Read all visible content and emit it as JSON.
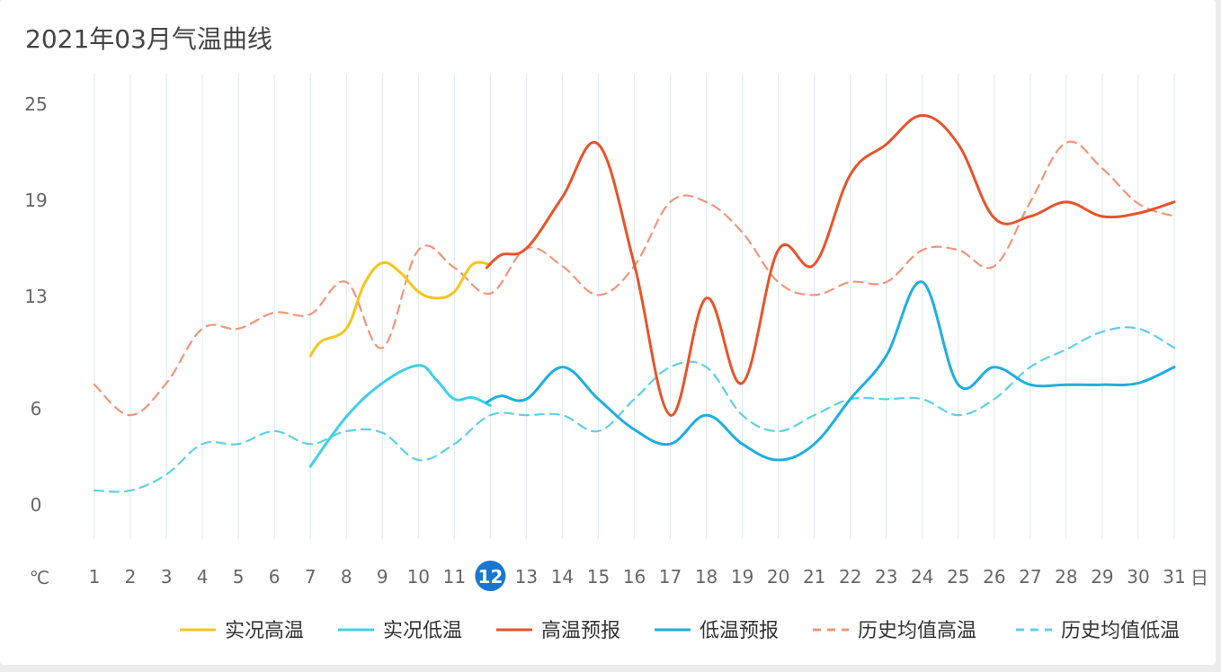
{
  "title": "2021年03月气温曲线",
  "chart_data": {
    "type": "line",
    "title": "2021年03月气温曲线",
    "ylabel": "℃",
    "xlabel": "日",
    "x_categories": [
      "1",
      "2",
      "3",
      "4",
      "5",
      "6",
      "7",
      "8",
      "9",
      "10",
      "11",
      "12",
      "13",
      "14",
      "15",
      "16",
      "17",
      "18",
      "19",
      "20",
      "21",
      "22",
      "23",
      "24",
      "25",
      "26",
      "27",
      "28",
      "29",
      "30",
      "31"
    ],
    "highlighted_day": "12",
    "ylim": [
      0,
      25
    ],
    "y_ticks": [
      0,
      6,
      13,
      19,
      25
    ],
    "grid": "vertical",
    "legend_position": "bottom-right",
    "series": [
      {
        "name": "实况高温",
        "color": "#f5c518",
        "style": "solid",
        "points": [
          [
            7,
            9.3
          ],
          [
            7.3,
            10.2
          ],
          [
            8,
            11
          ],
          [
            8.5,
            13.8
          ],
          [
            9,
            15.1
          ],
          [
            9.5,
            14.5
          ],
          [
            10,
            13.3
          ],
          [
            10.5,
            12.9
          ],
          [
            11,
            13.3
          ],
          [
            11.5,
            15
          ],
          [
            12,
            15
          ]
        ]
      },
      {
        "name": "实况低温",
        "color": "#3fd0e6",
        "style": "solid",
        "points": [
          [
            7,
            2.4
          ],
          [
            8,
            5.5
          ],
          [
            9,
            7.6
          ],
          [
            10,
            8.7
          ],
          [
            10.5,
            7.8
          ],
          [
            11,
            6.6
          ],
          [
            11.5,
            6.7
          ],
          [
            12,
            6.2
          ]
        ]
      },
      {
        "name": "高温预报",
        "color": "#e8532a",
        "style": "solid",
        "points": [
          [
            11.9,
            14.8
          ],
          [
            12.3,
            15.6
          ],
          [
            13,
            16
          ],
          [
            14,
            19.2
          ],
          [
            15,
            22.5
          ],
          [
            16,
            15
          ],
          [
            17,
            5.6
          ],
          [
            18,
            12.9
          ],
          [
            19,
            7.6
          ],
          [
            20,
            15.9
          ],
          [
            21,
            15
          ],
          [
            22,
            20.6
          ],
          [
            23,
            22.5
          ],
          [
            24,
            24.3
          ],
          [
            25,
            22.5
          ],
          [
            26,
            17.9
          ],
          [
            27,
            18
          ],
          [
            28,
            18.9
          ],
          [
            29,
            18
          ],
          [
            30,
            18.2
          ],
          [
            31,
            18.9
          ]
        ]
      },
      {
        "name": "低温预报",
        "color": "#1eaee0",
        "style": "solid",
        "points": [
          [
            11.9,
            6.4
          ],
          [
            12.3,
            6.8
          ],
          [
            13,
            6.6
          ],
          [
            14,
            8.6
          ],
          [
            15,
            6.6
          ],
          [
            16,
            4.7
          ],
          [
            17,
            3.8
          ],
          [
            18,
            5.6
          ],
          [
            19,
            3.8
          ],
          [
            20,
            2.8
          ],
          [
            21,
            3.8
          ],
          [
            22,
            6.6
          ],
          [
            23,
            9.3
          ],
          [
            24,
            13.9
          ],
          [
            25,
            7.5
          ],
          [
            26,
            8.6
          ],
          [
            27,
            7.5
          ],
          [
            28,
            7.5
          ],
          [
            29,
            7.5
          ],
          [
            30,
            7.6
          ],
          [
            31,
            8.6
          ]
        ]
      },
      {
        "name": "历史均值高温",
        "color": "#f0957a",
        "style": "dashed",
        "points": [
          [
            1,
            7.5
          ],
          [
            2,
            5.6
          ],
          [
            3,
            7.6
          ],
          [
            4,
            11
          ],
          [
            5,
            11
          ],
          [
            6,
            12
          ],
          [
            7,
            11.9
          ],
          [
            8,
            13.9
          ],
          [
            9,
            9.8
          ],
          [
            10,
            15.9
          ],
          [
            11,
            14.8
          ],
          [
            12,
            13.2
          ],
          [
            13,
            16
          ],
          [
            14,
            14.9
          ],
          [
            15,
            13.1
          ],
          [
            16,
            14.9
          ],
          [
            17,
            18.9
          ],
          [
            18,
            18.9
          ],
          [
            19,
            17
          ],
          [
            20,
            13.9
          ],
          [
            21,
            13.1
          ],
          [
            22,
            13.9
          ],
          [
            23,
            13.9
          ],
          [
            24,
            15.9
          ],
          [
            25,
            15.9
          ],
          [
            26,
            14.9
          ],
          [
            27,
            18.9
          ],
          [
            28,
            22.6
          ],
          [
            29,
            21
          ],
          [
            30,
            18.8
          ],
          [
            31,
            18
          ]
        ]
      },
      {
        "name": "历史均值低温",
        "color": "#5fcfe3",
        "style": "dashed",
        "points": [
          [
            1,
            0.9
          ],
          [
            2,
            0.9
          ],
          [
            3,
            1.9
          ],
          [
            4,
            3.8
          ],
          [
            5,
            3.8
          ],
          [
            6,
            4.6
          ],
          [
            7,
            3.8
          ],
          [
            8,
            4.6
          ],
          [
            9,
            4.5
          ],
          [
            10,
            2.8
          ],
          [
            11,
            3.8
          ],
          [
            12,
            5.6
          ],
          [
            13,
            5.6
          ],
          [
            14,
            5.6
          ],
          [
            15,
            4.6
          ],
          [
            16,
            6.6
          ],
          [
            17,
            8.6
          ],
          [
            18,
            8.6
          ],
          [
            19,
            5.6
          ],
          [
            20,
            4.6
          ],
          [
            21,
            5.6
          ],
          [
            22,
            6.6
          ],
          [
            23,
            6.6
          ],
          [
            24,
            6.6
          ],
          [
            25,
            5.6
          ],
          [
            26,
            6.6
          ],
          [
            27,
            8.6
          ],
          [
            28,
            9.7
          ],
          [
            29,
            10.8
          ],
          [
            30,
            11
          ],
          [
            31,
            9.8
          ]
        ]
      }
    ]
  }
}
